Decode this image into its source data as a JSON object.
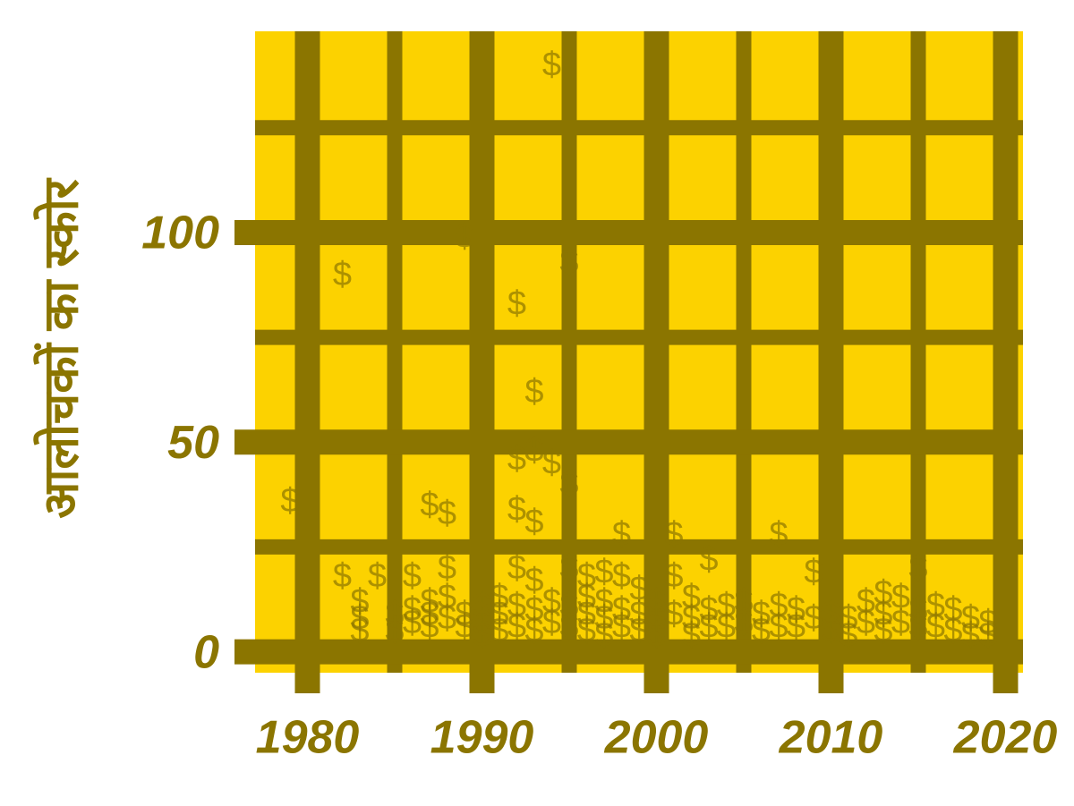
{
  "chart_data": {
    "type": "scatter",
    "y_label": "आलोचकों का स्कोर",
    "marker": "$",
    "background": "#fcd200",
    "grid_color": "#8b7500",
    "color": "#8b7500",
    "grid": true,
    "xlim": [
      1977,
      2021
    ],
    "xticks": [
      1980,
      1990,
      2000,
      2010,
      2020
    ],
    "xminor": [
      1985,
      1995,
      2005,
      2015
    ],
    "ylim": [
      -5,
      148
    ],
    "yticks": [
      0,
      50,
      100
    ],
    "yminor": [
      25,
      75,
      125
    ],
    "series": [
      {
        "name": null,
        "color": "#8b7500",
        "x": [
          1979,
          1982,
          1982,
          1983,
          1983,
          1983,
          1984,
          1985,
          1985,
          1986,
          1986,
          1986,
          1987,
          1987,
          1987,
          1987,
          1988,
          1988,
          1988,
          1988,
          1989,
          1989,
          1989,
          1990,
          1990,
          1990,
          1991,
          1991,
          1991,
          1992,
          1992,
          1992,
          1992,
          1992,
          1992,
          1993,
          1993,
          1993,
          1993,
          1993,
          1993,
          1994,
          1994,
          1994,
          1994,
          1995,
          1995,
          1995,
          1995,
          1995,
          1996,
          1996,
          1996,
          1996,
          1997,
          1997,
          1997,
          1997,
          1998,
          1998,
          1998,
          1998,
          1999,
          1999,
          1999,
          2000,
          2000,
          2000,
          2001,
          2001,
          2001,
          2002,
          2002,
          2002,
          2003,
          2003,
          2003,
          2004,
          2004,
          2005,
          2005,
          2006,
          2006,
          2007,
          2007,
          2007,
          2008,
          2008,
          2009,
          2009,
          2010,
          2010,
          2011,
          2011,
          2012,
          2012,
          2013,
          2013,
          2013,
          2014,
          2014,
          2015,
          2015,
          2015,
          2016,
          2016,
          2017,
          2017,
          2018,
          2018,
          2019,
          2019
        ],
        "values": [
          36,
          90,
          18,
          12,
          8,
          5,
          18,
          5,
          9,
          18,
          7,
          10,
          35,
          12,
          9,
          6,
          33,
          20,
          13,
          8,
          99,
          9,
          6,
          11,
          7,
          4,
          13,
          9,
          5,
          83,
          46,
          34,
          20,
          11,
          6,
          62,
          48,
          31,
          17,
          10,
          5,
          140,
          45,
          12,
          7,
          93,
          40,
          20,
          11,
          6,
          18,
          13,
          9,
          5,
          19,
          12,
          8,
          4,
          28,
          18,
          10,
          6,
          15,
          9,
          5,
          12,
          8,
          4,
          28,
          18,
          9,
          13,
          8,
          4,
          22,
          10,
          6,
          11,
          6,
          12,
          7,
          9,
          5,
          28,
          11,
          6,
          10,
          6,
          19,
          8,
          9,
          5,
          8,
          4,
          12,
          7,
          14,
          9,
          5,
          13,
          7,
          20,
          10,
          6,
          11,
          6,
          10,
          5,
          8,
          4,
          7,
          4
        ]
      }
    ]
  }
}
